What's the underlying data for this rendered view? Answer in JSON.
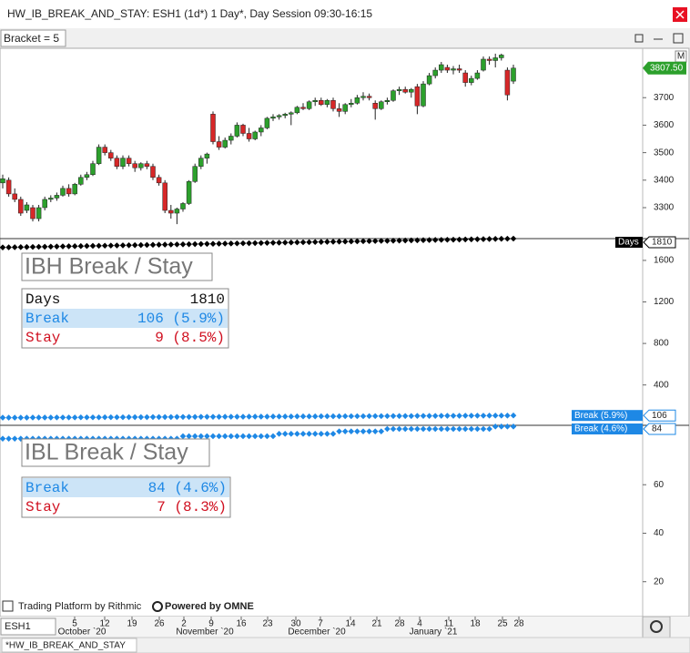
{
  "window": {
    "title": "HW_IB_BREAK_AND_STAY: ESH1 (1d*) 1 Day*, Day Session 09:30-16:15",
    "bracket": "Bracket = 5",
    "panel_button": "M",
    "symbol": "ESH1",
    "tab": "*HW_IB_BREAK_AND_STAY",
    "footer_left": "Trading Platform by Rithmic",
    "footer_right": "Powered by OMNE"
  },
  "price_panel": {
    "type": "candlestick",
    "up_color": "#2ca02c",
    "down_color": "#d62728",
    "ylim": [
      3194,
      3873
    ],
    "yticks": [
      3300,
      3400,
      3500,
      3600,
      3700
    ],
    "last_price": {
      "value": 3807.5,
      "label": "3807.50"
    },
    "candles": [
      [
        3390,
        3420,
        3370,
        3405
      ],
      [
        3400,
        3410,
        3340,
        3350
      ],
      [
        3350,
        3370,
        3320,
        3330
      ],
      [
        3330,
        3340,
        3270,
        3280
      ],
      [
        3290,
        3320,
        3280,
        3310
      ],
      [
        3300,
        3310,
        3250,
        3260
      ],
      [
        3260,
        3310,
        3250,
        3300
      ],
      [
        3300,
        3340,
        3290,
        3330
      ],
      [
        3330,
        3345,
        3320,
        3335
      ],
      [
        3335,
        3355,
        3325,
        3345
      ],
      [
        3345,
        3380,
        3340,
        3370
      ],
      [
        3370,
        3385,
        3340,
        3350
      ],
      [
        3350,
        3390,
        3345,
        3385
      ],
      [
        3385,
        3420,
        3380,
        3410
      ],
      [
        3410,
        3430,
        3400,
        3420
      ],
      [
        3420,
        3470,
        3415,
        3460
      ],
      [
        3460,
        3530,
        3455,
        3520
      ],
      [
        3520,
        3530,
        3490,
        3500
      ],
      [
        3500,
        3510,
        3470,
        3480
      ],
      [
        3480,
        3490,
        3440,
        3450
      ],
      [
        3450,
        3490,
        3440,
        3480
      ],
      [
        3480,
        3490,
        3450,
        3460
      ],
      [
        3460,
        3470,
        3430,
        3445
      ],
      [
        3445,
        3465,
        3435,
        3460
      ],
      [
        3460,
        3470,
        3440,
        3450
      ],
      [
        3450,
        3460,
        3400,
        3410
      ],
      [
        3410,
        3420,
        3380,
        3390
      ],
      [
        3390,
        3400,
        3280,
        3290
      ],
      [
        3290,
        3310,
        3260,
        3280
      ],
      [
        3280,
        3300,
        3240,
        3295
      ],
      [
        3295,
        3320,
        3285,
        3315
      ],
      [
        3315,
        3400,
        3310,
        3395
      ],
      [
        3395,
        3460,
        3390,
        3450
      ],
      [
        3450,
        3490,
        3440,
        3480
      ],
      [
        3480,
        3500,
        3460,
        3495
      ],
      [
        3640,
        3650,
        3530,
        3540
      ],
      [
        3540,
        3560,
        3510,
        3520
      ],
      [
        3520,
        3555,
        3515,
        3545
      ],
      [
        3545,
        3570,
        3530,
        3560
      ],
      [
        3560,
        3610,
        3555,
        3600
      ],
      [
        3600,
        3605,
        3560,
        3570
      ],
      [
        3570,
        3590,
        3540,
        3550
      ],
      [
        3550,
        3580,
        3545,
        3575
      ],
      [
        3575,
        3600,
        3560,
        3590
      ],
      [
        3590,
        3630,
        3585,
        3625
      ],
      [
        3625,
        3640,
        3615,
        3630
      ],
      [
        3630,
        3640,
        3620,
        3635
      ],
      [
        3635,
        3645,
        3625,
        3640
      ],
      [
        3640,
        3650,
        3600,
        3645
      ],
      [
        3645,
        3670,
        3640,
        3665
      ],
      [
        3665,
        3680,
        3655,
        3660
      ],
      [
        3660,
        3690,
        3655,
        3685
      ],
      [
        3685,
        3700,
        3670,
        3690
      ],
      [
        3690,
        3700,
        3670,
        3675
      ],
      [
        3675,
        3695,
        3665,
        3690
      ],
      [
        3690,
        3700,
        3650,
        3660
      ],
      [
        3660,
        3680,
        3630,
        3650
      ],
      [
        3650,
        3680,
        3640,
        3675
      ],
      [
        3675,
        3695,
        3665,
        3680
      ],
      [
        3680,
        3710,
        3675,
        3700
      ],
      [
        3700,
        3720,
        3690,
        3705
      ],
      [
        3705,
        3715,
        3690,
        3700
      ],
      [
        3680,
        3690,
        3620,
        3660
      ],
      [
        3660,
        3690,
        3655,
        3685
      ],
      [
        3685,
        3700,
        3675,
        3690
      ],
      [
        3690,
        3730,
        3685,
        3725
      ],
      [
        3725,
        3740,
        3710,
        3730
      ],
      [
        3730,
        3740,
        3715,
        3720
      ],
      [
        3720,
        3735,
        3700,
        3730
      ],
      [
        3740,
        3750,
        3640,
        3670
      ],
      [
        3670,
        3760,
        3665,
        3750
      ],
      [
        3750,
        3790,
        3745,
        3780
      ],
      [
        3780,
        3810,
        3770,
        3800
      ],
      [
        3800,
        3830,
        3790,
        3820
      ],
      [
        3810,
        3820,
        3790,
        3800
      ],
      [
        3800,
        3815,
        3785,
        3805
      ],
      [
        3805,
        3820,
        3790,
        3800
      ],
      [
        3790,
        3800,
        3740,
        3755
      ],
      [
        3755,
        3780,
        3745,
        3770
      ],
      [
        3770,
        3800,
        3765,
        3790
      ],
      [
        3800,
        3850,
        3795,
        3840
      ],
      [
        3840,
        3850,
        3820,
        3835
      ],
      [
        3835,
        3860,
        3810,
        3845
      ],
      [
        3845,
        3860,
        3835,
        3855
      ],
      [
        3800,
        3810,
        3690,
        3710
      ],
      [
        3760,
        3820,
        3750,
        3807.5
      ]
    ]
  },
  "ibh_panel": {
    "title": "IBH Break / Stay",
    "table": [
      [
        "Days",
        "1810"
      ],
      [
        "Break",
        "106 (5.9%)"
      ],
      [
        "Stay",
        "9 (8.5%)"
      ]
    ],
    "ylim": [
      20,
      1810
    ],
    "yticks": [
      400,
      800,
      1200,
      1600
    ],
    "series": [
      {
        "name": "Days",
        "color": "#000000",
        "tag": "1810",
        "values": [
          1725,
          1726,
          1727,
          1728,
          1729,
          1730,
          1731,
          1732,
          1733,
          1734,
          1735,
          1736,
          1737,
          1738,
          1739,
          1740,
          1741,
          1742,
          1743,
          1744,
          1745,
          1746,
          1747,
          1748,
          1749,
          1750,
          1751,
          1752,
          1753,
          1754,
          1755,
          1756,
          1757,
          1758,
          1759,
          1760,
          1761,
          1762,
          1763,
          1764,
          1765,
          1766,
          1767,
          1768,
          1769,
          1770,
          1771,
          1772,
          1773,
          1774,
          1775,
          1776,
          1777,
          1778,
          1779,
          1780,
          1781,
          1782,
          1783,
          1784,
          1785,
          1786,
          1787,
          1788,
          1789,
          1790,
          1791,
          1792,
          1793,
          1794,
          1795,
          1796,
          1797,
          1798,
          1799,
          1800,
          1801,
          1802,
          1803,
          1804,
          1805,
          1806,
          1807,
          1808,
          1809,
          1810
        ]
      },
      {
        "name": "Break (5.9%)",
        "color": "#1e88e5",
        "tag": "106",
        "values": [
          85,
          85,
          85,
          85,
          85,
          86,
          86,
          86,
          86,
          87,
          87,
          87,
          87,
          88,
          88,
          88,
          88,
          89,
          89,
          89,
          89,
          90,
          90,
          90,
          90,
          91,
          91,
          91,
          91,
          92,
          92,
          92,
          92,
          93,
          93,
          93,
          93,
          94,
          94,
          94,
          94,
          95,
          95,
          95,
          95,
          96,
          96,
          96,
          96,
          97,
          97,
          97,
          97,
          98,
          98,
          98,
          98,
          99,
          99,
          99,
          99,
          100,
          100,
          100,
          100,
          101,
          101,
          101,
          101,
          102,
          102,
          102,
          102,
          103,
          103,
          103,
          103,
          104,
          104,
          104,
          104,
          105,
          105,
          105,
          105,
          106
        ]
      }
    ]
  },
  "ibl_panel": {
    "title": "IBL Break / Stay",
    "table": [
      [
        "Break",
        "84 (4.6%)"
      ],
      [
        "Stay",
        "7 (8.3%)"
      ]
    ],
    "ylim": [
      6,
      84.5
    ],
    "yticks": [
      20,
      40,
      60
    ],
    "series": [
      {
        "name": "Break (4.6%)",
        "color": "#1e88e5",
        "tag": "84",
        "values": [
          79,
          79,
          79,
          79,
          79,
          79,
          79,
          79,
          79,
          79,
          79,
          79,
          79,
          79,
          79,
          79,
          79,
          79,
          79,
          79,
          79,
          79,
          79,
          79,
          79,
          79,
          79,
          79,
          79,
          79,
          80,
          80,
          80,
          80,
          80,
          80,
          80,
          80,
          80,
          80,
          80,
          80,
          80,
          80,
          80,
          80,
          81,
          81,
          81,
          81,
          81,
          81,
          81,
          81,
          81,
          81,
          82,
          82,
          82,
          82,
          82,
          82,
          82,
          82,
          83,
          83,
          83,
          83,
          83,
          83,
          83,
          83,
          83,
          83,
          83,
          83,
          83,
          83,
          83,
          83,
          83,
          83,
          84,
          84,
          84,
          84
        ]
      }
    ]
  },
  "date_axis": {
    "days": [
      "5",
      "12",
      "19",
      "26",
      "2",
      "9",
      "16",
      "23",
      "30",
      "7",
      "14",
      "21",
      "28",
      "4",
      "11",
      "18",
      "25",
      "28"
    ],
    "months": [
      "October `20",
      "November `20",
      "December `20",
      "January `21"
    ]
  }
}
